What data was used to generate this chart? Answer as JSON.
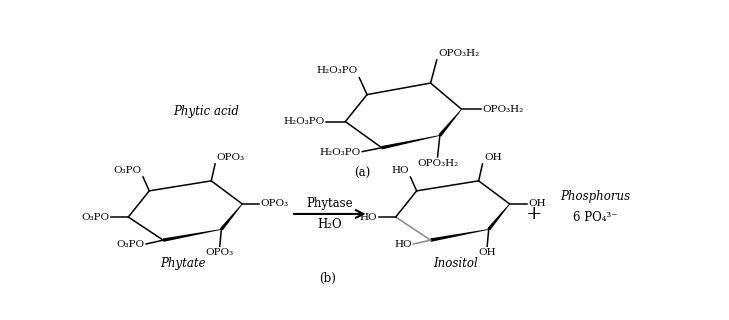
{
  "bg_color": "#ffffff",
  "fig_width": 7.29,
  "fig_height": 3.2,
  "dpi": 100,
  "panel_a_label": "(a)",
  "panel_b_label": "(b)",
  "phytic_acid_label": "Phytic acid",
  "phytate_label": "Phytate",
  "inositol_label": "Inositol",
  "phosphorus_label": "Phosphorus",
  "phytase_label": "Phytase",
  "h2o_label": "H₂O",
  "plus_label": "+",
  "po4_label": "6 PO₄³⁻",
  "opo3h2": "OPO₃H₂",
  "h2o3po": "H₂O₃PO",
  "opo3": "OPO₃",
  "o3po": "O₃PO",
  "oh": "OH",
  "ho": "HO"
}
